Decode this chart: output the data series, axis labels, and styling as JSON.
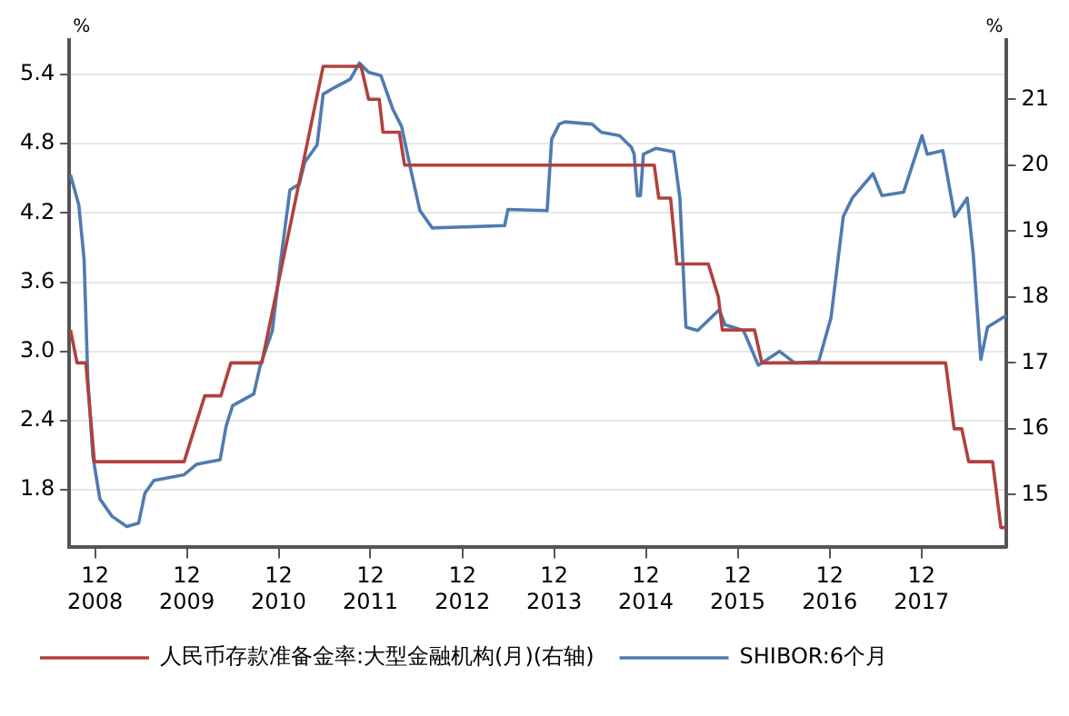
{
  "chart_data": {
    "type": "line",
    "ylabel": "%",
    "y2label": "%",
    "xlim": [
      "2008-08-20",
      "2018-11-05"
    ],
    "xticks": [
      {
        "value": "2008-12",
        "label": "12\n2008"
      },
      {
        "value": "2009-12",
        "label": "12\n2009"
      },
      {
        "value": "2010-12",
        "label": "12\n2010"
      },
      {
        "value": "2011-12",
        "label": "12\n2011"
      },
      {
        "value": "2012-12",
        "label": "12\n2012"
      },
      {
        "value": "2013-12",
        "label": "12\n2013"
      },
      {
        "value": "2014-12",
        "label": "12\n2014"
      },
      {
        "value": "2015-12",
        "label": "12\n2015"
      },
      {
        "value": "2016-12",
        "label": "12\n2016"
      },
      {
        "value": "2017-12",
        "label": "12\n2017"
      }
    ],
    "ylim": [
      1.3,
      5.7
    ],
    "yticks": [
      1.8,
      2.4,
      {
        "value": 3,
        "label": "3.0"
      },
      3.6,
      4.2,
      4.8,
      5.4
    ],
    "y2lim": [
      14.2,
      21.9
    ],
    "y2ticks": [
      15,
      16,
      17,
      18,
      19,
      20,
      21
    ],
    "grid": "y",
    "legend": "bottom left",
    "marker": "none",
    "line_style": "solid",
    "series": [
      {
        "name": "人民币存款准备金率:大型金融机构(月)(右轴)",
        "color": "#b0413e",
        "axis": "y2",
        "x": [
          "2008-08-25",
          "2008-09-20",
          "2008-10-25",
          "2008-11-28",
          "2009-11-20",
          "2010-02-10",
          "2010-04-15",
          "2010-05-25",
          "2010-09-25",
          "2011-05-27",
          "2011-10-25",
          "2011-11-24",
          "2012-01-05",
          "2012-01-20",
          "2012-03-25",
          "2012-04-15",
          "2015-01-03",
          "2015-01-21",
          "2015-03-09",
          "2015-04-03",
          "2015-08-06",
          "2015-09-15",
          "2015-10-01",
          "2016-02-06",
          "2016-03-06",
          "2018-03-07",
          "2018-04-10",
          "2018-05-10",
          "2018-06-07",
          "2018-09-10",
          "2018-10-13",
          "2018-11-03"
        ],
        "values": [
          17.5,
          17,
          17,
          15.5,
          15.5,
          16.5,
          16.5,
          17,
          17,
          21.5,
          21.5,
          21,
          21,
          20.5,
          20.5,
          20,
          20,
          19.5,
          19.5,
          18.5,
          18.5,
          18,
          17.5,
          17.5,
          17,
          17,
          16,
          16,
          15.5,
          15.5,
          14.5,
          14.5
        ]
      },
      {
        "name": "SHIBOR:6个月",
        "color": "#4f7bb0",
        "x": [
          "2008-08-25",
          "2008-09-27",
          "2008-10-18",
          "2008-11-02",
          "2008-11-22",
          "2008-12-20",
          "2009-02-06",
          "2009-04-06",
          "2009-05-23",
          "2009-06-17",
          "2009-07-23",
          "2009-11-20",
          "2010-01-08",
          "2010-04-12",
          "2010-05-06",
          "2010-06-01",
          "2010-08-24",
          "2010-09-18",
          "2010-11-06",
          "2010-12-10",
          "2011-01-15",
          "2011-02-21",
          "2011-03-15",
          "2011-05-03",
          "2011-05-27",
          "2011-07-13",
          "2011-09-12",
          "2011-10-18",
          "2011-11-24",
          "2012-01-12",
          "2012-02-28",
          "2012-04-03",
          "2012-05-09",
          "2012-06-15",
          "2012-08-03",
          "2013-05-18",
          "2013-05-31",
          "2013-11-03",
          "2013-11-21",
          "2013-12-21",
          "2014-01-12",
          "2014-05-01",
          "2014-06-06",
          "2014-08-18",
          "2014-10-04",
          "2014-10-15",
          "2014-10-28",
          "2014-11-09",
          "2014-11-21",
          "2015-01-09",
          "2015-03-21",
          "2015-04-15",
          "2015-05-09",
          "2015-06-25",
          "2015-09-18",
          "2015-10-12",
          "2015-12-24",
          "2016-02-21",
          "2016-05-15",
          "2016-07-15",
          "2016-10-18",
          "2016-12-06",
          "2017-01-24",
          "2017-03-01",
          "2017-05-22",
          "2017-06-27",
          "2017-09-21",
          "2017-12-03",
          "2017-12-24",
          "2018-02-24",
          "2018-04-12",
          "2018-06-01",
          "2018-06-25",
          "2018-07-25",
          "2018-08-21",
          "2018-11-03"
        ],
        "values": [
          4.53,
          4.27,
          3.8,
          2.76,
          2.09,
          1.72,
          1.57,
          1.48,
          1.51,
          1.77,
          1.88,
          1.93,
          2.02,
          2.06,
          2.35,
          2.53,
          2.63,
          2.87,
          3.18,
          3.8,
          4.4,
          4.45,
          4.64,
          4.79,
          5.23,
          5.29,
          5.36,
          5.5,
          5.42,
          5.39,
          5.1,
          4.95,
          4.58,
          4.22,
          4.07,
          4.09,
          4.23,
          4.22,
          4.84,
          4.97,
          4.99,
          4.97,
          4.9,
          4.87,
          4.77,
          4.71,
          4.35,
          4.35,
          4.71,
          4.76,
          4.73,
          4.33,
          3.21,
          3.18,
          3.36,
          3.23,
          3.18,
          2.88,
          3.0,
          2.9,
          2.91,
          3.29,
          4.17,
          4.33,
          4.54,
          4.35,
          4.38,
          4.87,
          4.71,
          4.74,
          4.17,
          4.33,
          3.84,
          2.93,
          3.21,
          3.31
        ]
      }
    ]
  }
}
